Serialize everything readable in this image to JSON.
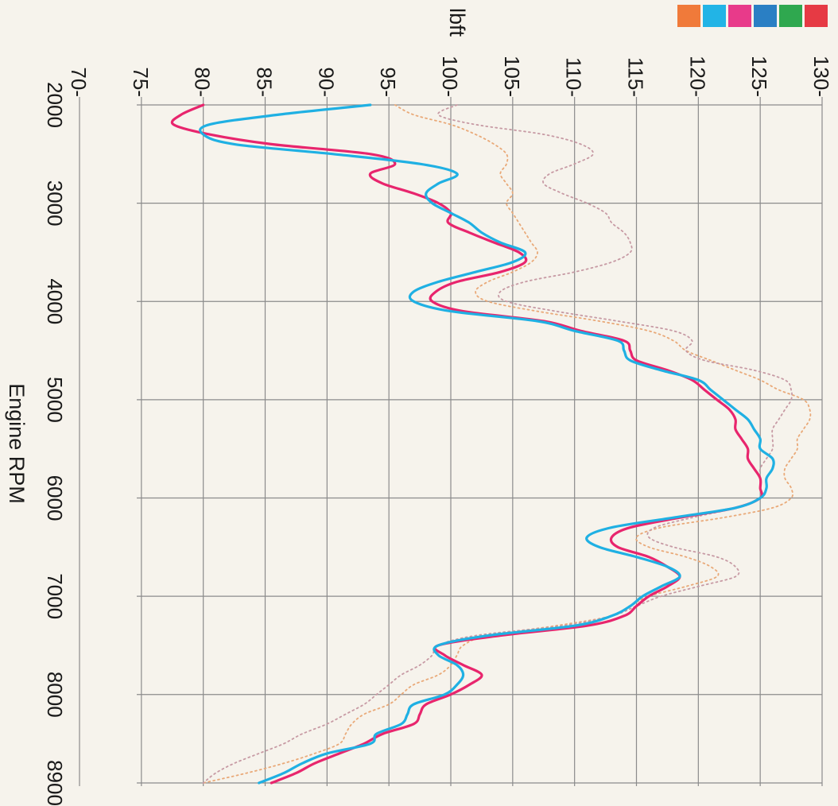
{
  "chart_data": {
    "type": "line",
    "xlabel": "Engine RPM",
    "ylabel": "lbft",
    "xlim": [
      2000,
      8900
    ],
    "ylim": [
      70,
      130
    ],
    "x_ticks": [
      "2000",
      "3000",
      "4000",
      "5000",
      "6000",
      "7000",
      "8000",
      "8900"
    ],
    "y_ticks": [
      "70",
      "75",
      "80",
      "85",
      "90",
      "95",
      "100",
      "105",
      "110",
      "115",
      "120",
      "125",
      "130"
    ],
    "grid": true,
    "orientation": "rotated-90-clockwise",
    "legend_swatches": [
      "#f07a3a",
      "#22b4e6",
      "#e83a8a",
      "#2a7fc4",
      "#2fa84f",
      "#e63a44"
    ],
    "series": [
      {
        "color": "#e8256d",
        "style": "solid",
        "x": [
          2000,
          2100,
          2200,
          2300,
          2400,
          2500,
          2600,
          2700,
          2800,
          2900,
          3000,
          3100,
          3200,
          3300,
          3400,
          3500,
          3600,
          3700,
          3800,
          3900,
          4000,
          4100,
          4200,
          4300,
          4400,
          4500,
          4600,
          4700,
          4800,
          4900,
          5000,
          5100,
          5200,
          5300,
          5400,
          5500,
          5600,
          5700,
          5800,
          5900,
          6000,
          6100,
          6200,
          6300,
          6400,
          6500,
          6600,
          6700,
          6800,
          6900,
          7000,
          7100,
          7200,
          7300,
          7400,
          7500,
          7600,
          7700,
          7800,
          7900,
          8000,
          8100,
          8200,
          8300,
          8400,
          8500,
          8600,
          8700,
          8800,
          8900
        ],
        "values": [
          80.0,
          78.2,
          77.6,
          80.5,
          85.5,
          93.5,
          95.5,
          93.5,
          94.5,
          97.0,
          99.0,
          100.0,
          99.8,
          101.5,
          103.5,
          105.5,
          106.0,
          104.0,
          100.5,
          98.8,
          98.5,
          101.0,
          107.5,
          110.5,
          114.0,
          114.5,
          115.0,
          117.5,
          119.5,
          120.5,
          121.5,
          122.5,
          123.0,
          123.0,
          123.5,
          124.0,
          124.0,
          124.5,
          125.0,
          125.0,
          125.0,
          123.0,
          118.5,
          114.5,
          113.0,
          113.5,
          116.0,
          117.5,
          118.5,
          117.5,
          116.0,
          115.0,
          114.0,
          111.0,
          104.0,
          99.0,
          99.5,
          101.0,
          102.5,
          101.5,
          100.0,
          98.0,
          97.5,
          97.0,
          94.5,
          93.0,
          91.0,
          89.0,
          87.5,
          85.5
        ]
      },
      {
        "color": "#1fb0e3",
        "style": "solid",
        "x": [
          2000,
          2100,
          2200,
          2300,
          2400,
          2500,
          2600,
          2700,
          2800,
          2900,
          3000,
          3100,
          3200,
          3300,
          3400,
          3500,
          3600,
          3700,
          3800,
          3900,
          4000,
          4100,
          4200,
          4300,
          4400,
          4500,
          4600,
          4700,
          4800,
          4900,
          5000,
          5100,
          5200,
          5300,
          5400,
          5500,
          5600,
          5700,
          5800,
          5900,
          6000,
          6100,
          6200,
          6300,
          6400,
          6500,
          6600,
          6700,
          6800,
          6900,
          7000,
          7100,
          7200,
          7300,
          7400,
          7500,
          7600,
          7700,
          7800,
          7900,
          8000,
          8100,
          8200,
          8300,
          8400,
          8500,
          8600,
          8700,
          8800,
          8900
        ],
        "values": [
          93.5,
          86.0,
          80.5,
          80.0,
          82.5,
          90.5,
          97.5,
          100.5,
          99.0,
          98.0,
          98.5,
          100.0,
          101.5,
          102.5,
          104.0,
          106.0,
          105.0,
          102.0,
          99.0,
          97.0,
          97.0,
          100.0,
          107.0,
          110.0,
          113.5,
          114.0,
          114.5,
          117.0,
          120.0,
          121.0,
          122.0,
          123.0,
          124.0,
          124.5,
          125.0,
          125.0,
          126.0,
          126.0,
          125.5,
          125.5,
          125.0,
          123.0,
          118.0,
          113.0,
          111.0,
          112.0,
          115.0,
          117.5,
          118.5,
          117.0,
          115.5,
          114.5,
          113.0,
          110.0,
          103.0,
          99.0,
          99.0,
          100.5,
          101.0,
          100.5,
          99.5,
          97.0,
          96.5,
          96.0,
          94.0,
          93.5,
          90.0,
          88.0,
          86.5,
          84.5
        ]
      },
      {
        "color": "#e9a978",
        "style": "dotted",
        "x": [
          2000,
          2100,
          2200,
          2300,
          2400,
          2500,
          2600,
          2700,
          2800,
          2900,
          3000,
          3100,
          3200,
          3300,
          3400,
          3500,
          3600,
          3700,
          3800,
          3900,
          4000,
          4100,
          4200,
          4300,
          4400,
          4500,
          4600,
          4700,
          4800,
          4900,
          5000,
          5100,
          5200,
          5300,
          5400,
          5500,
          5600,
          5700,
          5800,
          5900,
          6000,
          6100,
          6200,
          6300,
          6400,
          6500,
          6600,
          6700,
          6800,
          6900,
          7000,
          7100,
          7200,
          7300,
          7400,
          7500,
          7600,
          7700,
          7800,
          7900,
          8000,
          8100,
          8200,
          8300,
          8400,
          8500,
          8600,
          8700,
          8800,
          8900
        ],
        "values": [
          95.5,
          97.0,
          100.0,
          102.0,
          103.5,
          104.5,
          104.5,
          104.0,
          104.5,
          105.0,
          104.5,
          105.0,
          105.5,
          106.0,
          106.5,
          107.0,
          106.5,
          105.0,
          103.0,
          102.0,
          103.0,
          107.0,
          112.0,
          116.0,
          118.0,
          119.0,
          121.0,
          123.0,
          125.0,
          126.5,
          128.5,
          129.0,
          129.0,
          128.5,
          128.0,
          128.0,
          127.5,
          127.0,
          127.0,
          127.5,
          127.5,
          126.0,
          122.0,
          117.0,
          115.0,
          116.0,
          119.0,
          121.0,
          121.5,
          119.0,
          116.0,
          114.5,
          113.0,
          108.5,
          103.0,
          101.0,
          100.5,
          100.0,
          99.0,
          97.0,
          96.0,
          95.0,
          93.0,
          92.0,
          91.5,
          91.0,
          89.0,
          86.5,
          83.5,
          80.0
        ]
      },
      {
        "color": "#c79aa4",
        "style": "dotted",
        "x": [
          2000,
          2100,
          2200,
          2300,
          2400,
          2500,
          2600,
          2700,
          2800,
          2900,
          3000,
          3100,
          3200,
          3300,
          3400,
          3500,
          3600,
          3700,
          3800,
          3900,
          4000,
          4100,
          4200,
          4300,
          4400,
          4500,
          4600,
          4700,
          4800,
          4900,
          5000,
          5100,
          5200,
          5300,
          5400,
          5500,
          5600,
          5700,
          5800,
          5900,
          6000,
          6100,
          6200,
          6300,
          6400,
          6500,
          6600,
          6700,
          6800,
          6900,
          7000,
          7100,
          7200,
          7300,
          7400,
          7500,
          7600,
          7700,
          7800,
          7900,
          8000,
          8100,
          8200,
          8300,
          8400,
          8500,
          8600,
          8700,
          8800,
          8900
        ],
        "values": [
          100.5,
          99.0,
          102.0,
          107.5,
          110.5,
          111.5,
          110.0,
          108.0,
          107.5,
          109.0,
          111.0,
          112.5,
          113.0,
          114.0,
          114.5,
          114.5,
          113.0,
          110.0,
          106.0,
          104.0,
          104.5,
          108.5,
          113.5,
          118.0,
          119.5,
          119.0,
          120.5,
          124.5,
          127.0,
          127.5,
          127.5,
          127.0,
          126.5,
          126.0,
          126.0,
          126.0,
          125.5,
          125.0,
          125.0,
          125.0,
          125.0,
          123.0,
          119.5,
          116.5,
          116.0,
          118.0,
          121.5,
          123.0,
          123.0,
          120.0,
          117.0,
          115.0,
          113.0,
          109.0,
          102.0,
          99.0,
          98.5,
          97.5,
          96.0,
          95.0,
          94.0,
          93.0,
          91.5,
          90.0,
          88.0,
          86.5,
          84.5,
          82.5,
          81.0,
          80.0
        ]
      }
    ]
  }
}
